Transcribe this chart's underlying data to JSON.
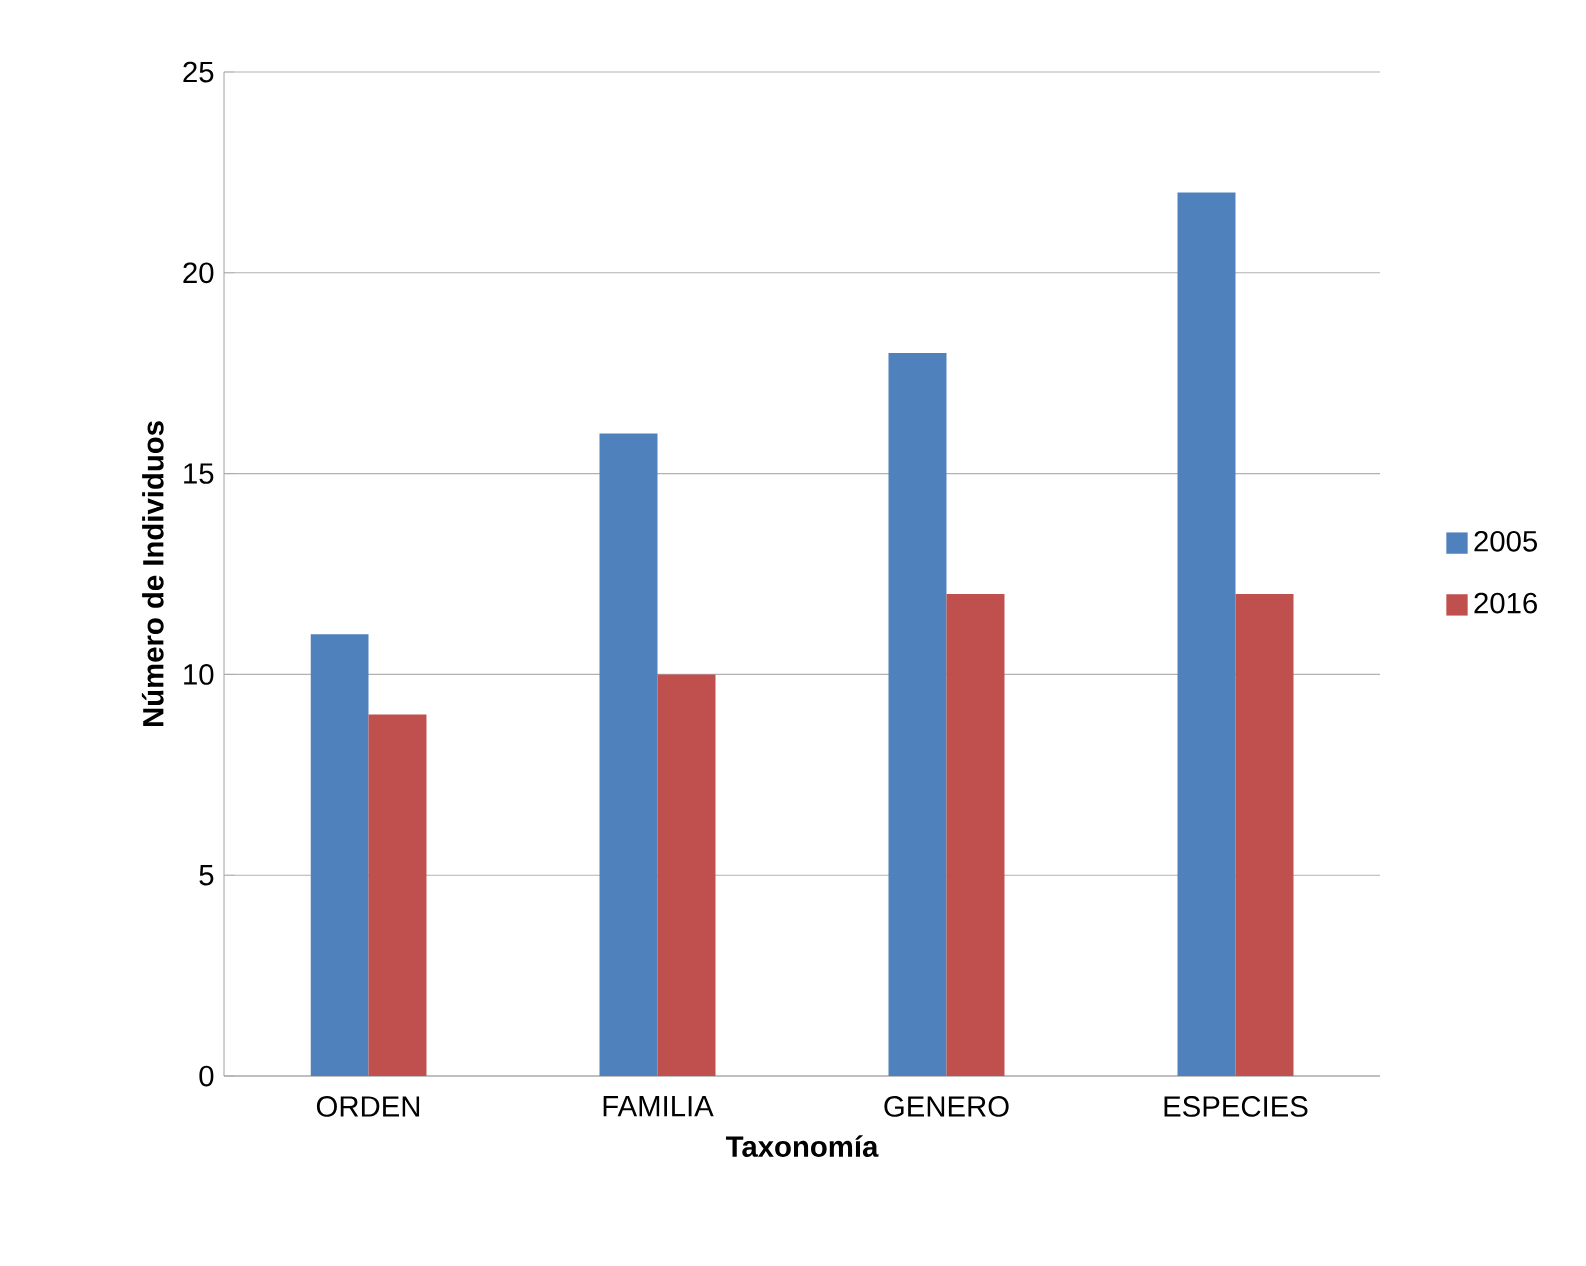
{
  "chart_data": {
    "type": "bar",
    "xlabel": "Taxonomía",
    "ylabel": "Número de Individuos",
    "categories": [
      "ORDEN",
      "FAMILIA",
      "GENERO",
      "ESPECIES"
    ],
    "series": [
      {
        "name": "2005",
        "color": "#4f81bd",
        "values": [
          11,
          16,
          18,
          22
        ]
      },
      {
        "name": "2016",
        "color": "#c0504d",
        "values": [
          9,
          10,
          12,
          12
        ]
      }
    ],
    "ylim": [
      0,
      25
    ],
    "yticks": [
      0,
      5,
      10,
      15,
      20,
      25
    ],
    "grid": "y",
    "legend": "right"
  }
}
